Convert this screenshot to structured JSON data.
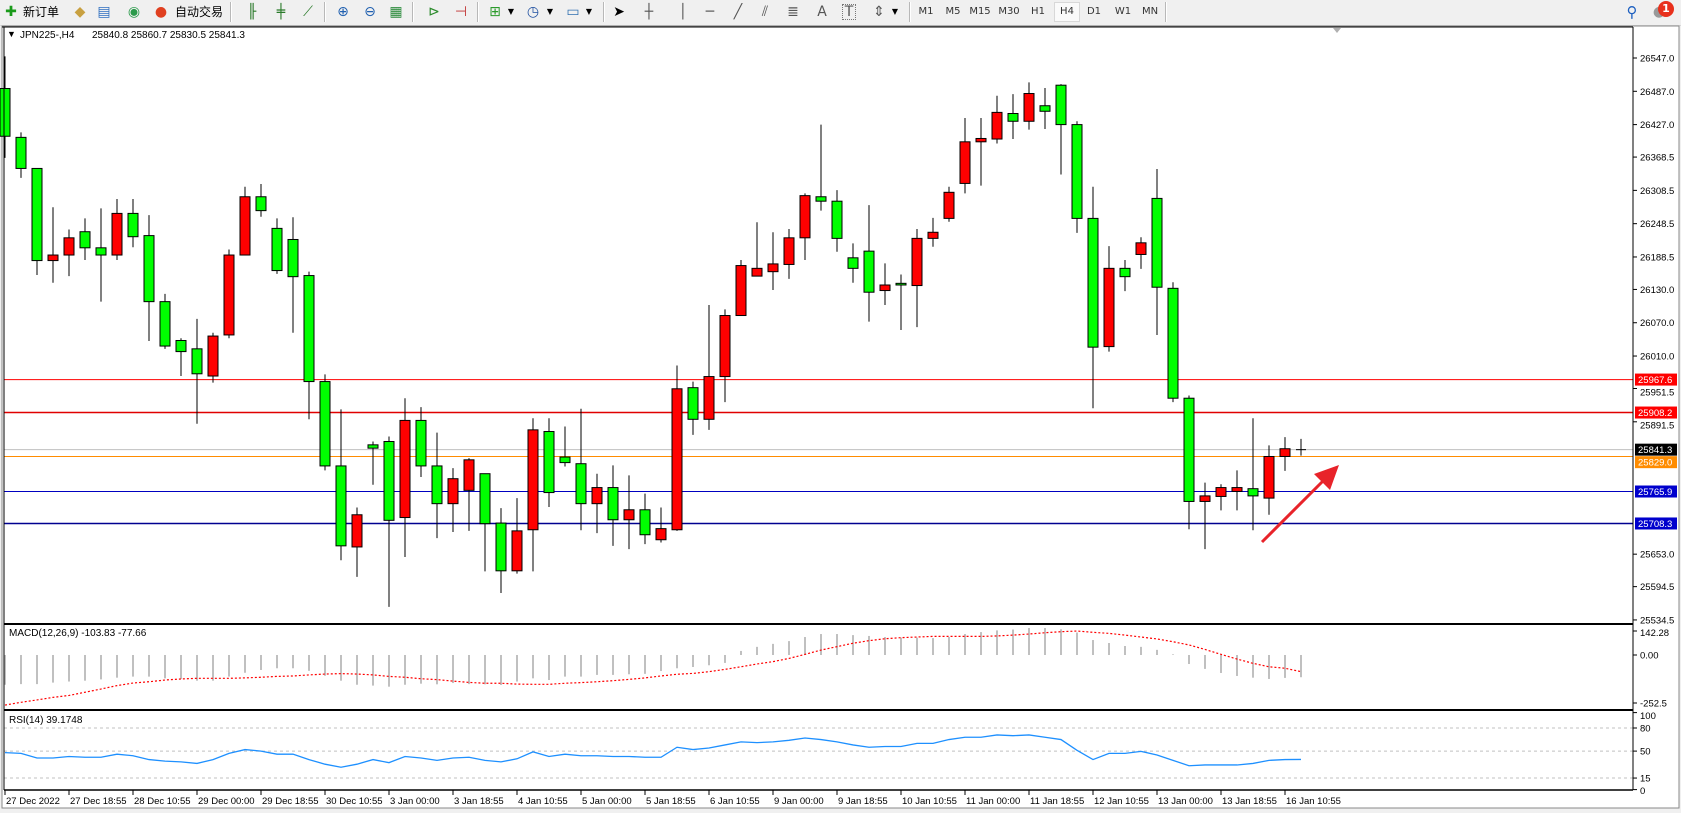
{
  "toolbar": {
    "new_order_label": "新订单",
    "auto_trading_label": "自动交易",
    "icons": [
      "new-order-icon",
      "gold-icon",
      "history-icon",
      "signals-icon",
      "auto-trading-icon",
      "bar-chart-icon",
      "candlestick-icon",
      "line-chart-icon",
      "zoom-in-icon",
      "zoom-out-icon",
      "tile-windows-icon",
      "autoscroll-icon",
      "chart-shift-icon",
      "indicators-icon",
      "periods-icon",
      "templates-icon",
      "cursor-icon",
      "crosshair-icon",
      "vertical-line-icon",
      "horizontal-line-icon",
      "trendline-icon",
      "channel-icon",
      "fibonacci-icon",
      "text-icon",
      "text-label-icon",
      "arrows-icon",
      "search-icon",
      "notifications-icon"
    ],
    "timeframes": [
      "M1",
      "M5",
      "M15",
      "M30",
      "H1",
      "H4",
      "D1",
      "W1",
      "MN"
    ],
    "active_timeframe": "H4",
    "text_tool_label": "A",
    "text_label_tool_label": "T",
    "notification_count": "1"
  },
  "chart_header": {
    "symbol": "JPN225-,H4",
    "ohlc": "25840.8 25860.7 25830.5 25841.3"
  },
  "chart_data": [
    {
      "type": "candlestick",
      "symbol": "JPN225-",
      "timeframe": "H4",
      "ylim": [
        25534.5,
        26547.0
      ],
      "y_ticks": [
        "26547.0",
        "26487.0",
        "26427.0",
        "26368.5",
        "26308.5",
        "26248.5",
        "26188.5",
        "26130.0",
        "26070.0",
        "26010.0",
        "25951.5",
        "25891.5",
        "25653.0",
        "25594.5",
        "25534.5"
      ],
      "x_ticks": [
        "27 Dec 2022",
        "27 Dec 18:55",
        "28 Dec 10:55",
        "29 Dec 00:00",
        "29 Dec 18:55",
        "30 Dec 10:55",
        "3 Jan 00:00",
        "3 Jan 18:55",
        "4 Jan 10:55",
        "5 Jan 00:00",
        "5 Jan 18:55",
        "6 Jan 10:55",
        "9 Jan 00:00",
        "9 Jan 18:55",
        "10 Jan 10:55",
        "11 Jan 00:00",
        "11 Jan 18:55",
        "12 Jan 10:55",
        "13 Jan 00:00",
        "13 Jan 18:55",
        "16 Jan 10:55"
      ],
      "ohlc_fields": [
        "open",
        "high",
        "low",
        "close"
      ],
      "candles": [
        [
          26492,
          26550,
          26367,
          26406
        ],
        [
          26404,
          26413,
          26331,
          26348
        ],
        [
          26348,
          26348,
          26156,
          26182
        ],
        [
          26182,
          26278,
          26142,
          26192
        ],
        [
          26192,
          26238,
          26154,
          26223
        ],
        [
          26234,
          26258,
          26183,
          26205
        ],
        [
          26205,
          26276,
          26108,
          26192
        ],
        [
          26192,
          26293,
          26183,
          26267
        ],
        [
          26267,
          26293,
          26206,
          26225
        ],
        [
          26227,
          26264,
          26037,
          26108
        ],
        [
          26108,
          26122,
          26023,
          26028
        ],
        [
          26038,
          26042,
          25974,
          26018
        ],
        [
          26023,
          26077,
          25888,
          25978
        ],
        [
          25974,
          26052,
          25962,
          26046
        ],
        [
          26048,
          26202,
          26042,
          26192
        ],
        [
          26192,
          26315,
          26192,
          26297
        ],
        [
          26297,
          26320,
          26261,
          26272
        ],
        [
          26240,
          26258,
          26158,
          26164
        ],
        [
          26220,
          26260,
          26052,
          26153
        ],
        [
          26155,
          26162,
          25896,
          25964
        ],
        [
          25964,
          25977,
          25804,
          25812
        ],
        [
          25812,
          25914,
          25642,
          25668
        ],
        [
          25666,
          25737,
          25612,
          25724
        ],
        [
          25850,
          25856,
          25778,
          25844
        ],
        [
          25856,
          25865,
          25558,
          25714
        ],
        [
          25719,
          25934,
          25648,
          25894
        ],
        [
          25894,
          25918,
          25792,
          25812
        ],
        [
          25812,
          25872,
          25682,
          25744
        ],
        [
          25744,
          25808,
          25693,
          25789
        ],
        [
          25768,
          25826,
          25695,
          25823
        ],
        [
          25798,
          25798,
          25622,
          25708
        ],
        [
          25709,
          25736,
          25583,
          25623
        ],
        [
          25623,
          25754,
          25618,
          25695
        ],
        [
          25697,
          25898,
          25622,
          25877
        ],
        [
          25874,
          25898,
          25738,
          25764
        ],
        [
          25828,
          25883,
          25811,
          25818
        ],
        [
          25816,
          25915,
          25696,
          25744
        ],
        [
          25744,
          25798,
          25691,
          25773
        ],
        [
          25773,
          25813,
          25668,
          25715
        ],
        [
          25715,
          25795,
          25662,
          25733
        ],
        [
          25733,
          25762,
          25671,
          25688
        ],
        [
          25679,
          25737,
          25674,
          25699
        ],
        [
          25697,
          25993,
          25695,
          25951
        ],
        [
          25953,
          25964,
          25868,
          25896
        ],
        [
          25896,
          26102,
          25877,
          25973
        ],
        [
          25973,
          26094,
          25927,
          26083
        ],
        [
          26083,
          26183,
          26083,
          26173
        ],
        [
          26154,
          26251,
          26154,
          26168
        ],
        [
          26162,
          26233,
          26129,
          26176
        ],
        [
          26175,
          26239,
          26149,
          26223
        ],
        [
          26223,
          26303,
          26183,
          26299
        ],
        [
          26297,
          26427,
          26272,
          26289
        ],
        [
          26289,
          26309,
          26198,
          26222
        ],
        [
          26187,
          26213,
          26142,
          26168
        ],
        [
          26199,
          26282,
          26072,
          26125
        ],
        [
          26128,
          26177,
          26102,
          26138
        ],
        [
          26141,
          26157,
          26057,
          26138
        ],
        [
          26137,
          26239,
          26062,
          26222
        ],
        [
          26222,
          26259,
          26207,
          26233
        ],
        [
          26258,
          26315,
          26252,
          26305
        ],
        [
          26321,
          26439,
          26303,
          26396
        ],
        [
          26396,
          26439,
          26317,
          26402
        ],
        [
          26401,
          26479,
          26393,
          26449
        ],
        [
          26447,
          26482,
          26401,
          26433
        ],
        [
          26433,
          26503,
          26418,
          26483
        ],
        [
          26461,
          26493,
          26419,
          26451
        ],
        [
          26498,
          26500,
          26337,
          26427
        ],
        [
          26427,
          26433,
          26232,
          26258
        ],
        [
          26258,
          26315,
          25916,
          26026
        ],
        [
          26027,
          26208,
          26018,
          26168
        ],
        [
          26168,
          26183,
          26127,
          26153
        ],
        [
          26193,
          26224,
          26167,
          26214
        ],
        [
          26294,
          26347,
          26048,
          26134
        ],
        [
          26132,
          26143,
          25927,
          25934
        ],
        [
          25934,
          25939,
          25698,
          25748
        ],
        [
          25748,
          25782,
          25662,
          25758
        ],
        [
          25757,
          25779,
          25732,
          25773
        ],
        [
          25766,
          25804,
          25732,
          25773
        ],
        [
          25771,
          25898,
          25696,
          25758
        ],
        [
          25754,
          25849,
          25724,
          25829
        ],
        [
          25829,
          25864,
          25803,
          25843
        ],
        [
          25840.8,
          25860.7,
          25830.5,
          25841.3
        ]
      ],
      "bull_color": "#ff0000",
      "bear_color": "#00ff00",
      "horizontal_lines": [
        {
          "price": 25967.6,
          "label": "25967.6",
          "color": "#ff0000",
          "label_bg": "#ff0000"
        },
        {
          "price": 25908.2,
          "label": "25908.2",
          "color": "#e00000",
          "label_bg": "#ff0000"
        },
        {
          "price": 25841.3,
          "label": "25841.3",
          "color": "#c0c0c0",
          "label_bg": "#000000"
        },
        {
          "price": 25829.0,
          "label": "25829.0",
          "color": "#ff8c00",
          "label_bg": "#ff8c00"
        },
        {
          "price": 25765.9,
          "label": "25765.9",
          "color": "#0000c0",
          "label_bg": "#0000cd"
        },
        {
          "price": 25708.3,
          "label": "25708.3",
          "color": "#000090",
          "label_bg": "#0000cd"
        }
      ],
      "annotation": {
        "type": "arrow",
        "direction": "up-right",
        "color": "#e8232a"
      }
    },
    {
      "type": "bar+line",
      "title": "MACD(12,26,9) -103.83 -77.66",
      "y_ticks": [
        "142.28",
        "0.00",
        "-252.5"
      ],
      "ylim": [
        -252.5,
        142.28
      ],
      "series": [
        {
          "kind": "histogram",
          "color": "#c0c0c0",
          "values": [
            -139,
            -136,
            -136,
            -129,
            -124,
            -120,
            -114,
            -106,
            -101,
            -101,
            -109,
            -112,
            -120,
            -120,
            -101,
            -83,
            -70,
            -62,
            -62,
            -74,
            -97,
            -120,
            -139,
            -143,
            -148,
            -139,
            -134,
            -137,
            -131,
            -136,
            -137,
            -140,
            -124,
            -109,
            -117,
            -101,
            -101,
            -93,
            -93,
            -90,
            -88,
            -75,
            -62,
            -56,
            -48,
            -37,
            19,
            38,
            52,
            65,
            84,
            98,
            98,
            93,
            89,
            84,
            81,
            81,
            79,
            84,
            98,
            107,
            115,
            119,
            126,
            126,
            120,
            105,
            70,
            56,
            42,
            38,
            24,
            3,
            -42,
            -65,
            -84,
            -98,
            -106,
            -112,
            -107,
            -103.83
          ]
        },
        {
          "kind": "signal",
          "color": "#ff0000",
          "style": "dotted",
          "values": [
            -234,
            -221,
            -210,
            -198,
            -189,
            -174,
            -159,
            -143,
            -131,
            -125,
            -117,
            -112,
            -109,
            -109,
            -109,
            -107,
            -104,
            -100,
            -98,
            -93,
            -89,
            -87,
            -89,
            -93,
            -100,
            -104,
            -111,
            -115,
            -122,
            -128,
            -132,
            -132,
            -136,
            -137,
            -137,
            -132,
            -129,
            -125,
            -120,
            -114,
            -107,
            -98,
            -90,
            -86,
            -78,
            -67,
            -55,
            -42,
            -31,
            -16,
            3,
            23,
            39,
            55,
            67,
            76,
            81,
            84,
            87,
            87,
            87,
            87,
            89,
            93,
            98,
            104,
            109,
            112,
            106,
            101,
            93,
            84,
            75,
            62,
            47,
            26,
            3,
            -19,
            -39,
            -55,
            -62,
            -77.66
          ]
        }
      ]
    },
    {
      "type": "line",
      "title": "RSI(14) 39.1748",
      "y_ticks": [
        "100",
        "80",
        "50",
        "15",
        "0"
      ],
      "ylim": [
        0,
        100
      ],
      "levels": [
        80,
        50,
        15
      ],
      "series": [
        {
          "color": "#1e90ff",
          "values": [
            48,
            47,
            41,
            41,
            43,
            42,
            42,
            46,
            44,
            39,
            37,
            36,
            34,
            39,
            47,
            52,
            50,
            46,
            46,
            39,
            33,
            29,
            33,
            39,
            35,
            43,
            41,
            38,
            41,
            42,
            38,
            36,
            40,
            49,
            43,
            46,
            44,
            44,
            43,
            43,
            42,
            42,
            55,
            52,
            54,
            58,
            62,
            61,
            62,
            64,
            67,
            65,
            62,
            58,
            55,
            56,
            56,
            60,
            60,
            65,
            68,
            68,
            71,
            70,
            71,
            68,
            65,
            51,
            39,
            47,
            47,
            49.6,
            45,
            38,
            31,
            32,
            32,
            32,
            34,
            38,
            39,
            39.1748
          ]
        }
      ]
    }
  ]
}
